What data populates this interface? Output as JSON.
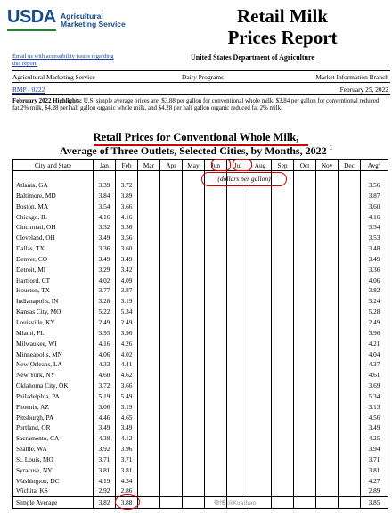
{
  "header": {
    "logo_text": "USDA",
    "logo_subtitle": "Agricultural Marketing Service",
    "title_line1": "Retail Milk",
    "title_line2": "Prices Report",
    "accessibility_link": "Email us with accessibility issues regarding this report.",
    "department": "United States Department of Agriculture"
  },
  "meta": {
    "agency": "Agricultural Marketing Service",
    "program": "Dairy Programs",
    "branch": "Market Information Branch",
    "report_code": "RMP - 0222",
    "date": "February 25, 2022"
  },
  "highlights": {
    "label": "February 2022 Highlights:",
    "text": "U.S. simple average prices are: $3.88 per gallon for conventional whole milk, $3.84 per gallon for conventional reduced fat 2% milk, $4.28 per half gallon organic whole milk, and $4.28 per half gallon organic reduced fat 2% milk."
  },
  "table": {
    "title_line1": "Retail Prices for Conventional Whole Milk,",
    "title_line2": "Average of Three Outlets, Selected Cities, by Months, 2022",
    "title_footnote": "1",
    "units": "(dollars per gallon)",
    "col_city": "City and State",
    "months": [
      "Jan",
      "Feb",
      "Mar",
      "Apr",
      "May",
      "Jun",
      "Jul",
      "Aug",
      "Sep",
      "Oct",
      "Nov",
      "Dec"
    ],
    "col_avg": "Avg",
    "col_avg_sup": "2",
    "rows": [
      {
        "city": "Atlanta, GA",
        "jan": "3.39",
        "feb": "3.72",
        "avg": "3.56"
      },
      {
        "city": "Baltimore, MD",
        "jan": "3.84",
        "feb": "3.89",
        "avg": "3.87"
      },
      {
        "city": "Boston, MA",
        "jan": "3.54",
        "feb": "3.66",
        "avg": "3.60"
      },
      {
        "city": "Chicago, IL",
        "jan": "4.16",
        "feb": "4.16",
        "avg": "4.16"
      },
      {
        "city": "Cincinnati, OH",
        "jan": "3.32",
        "feb": "3.36",
        "avg": "3.34"
      },
      {
        "city": "Cleveland, OH",
        "jan": "3.49",
        "feb": "3.56",
        "avg": "3.53"
      },
      {
        "city": "Dallas, TX",
        "jan": "3.36",
        "feb": "3.60",
        "avg": "3.48"
      },
      {
        "city": "Denver, CO",
        "jan": "3.49",
        "feb": "3.49",
        "avg": "3.49"
      },
      {
        "city": "Detroit, MI",
        "jan": "3.29",
        "feb": "3.42",
        "avg": "3.36"
      },
      {
        "city": "Hartford, CT",
        "jan": "4.02",
        "feb": "4.09",
        "avg": "4.06"
      },
      {
        "city": "Houston, TX",
        "jan": "3.77",
        "feb": "3.87",
        "avg": "3.82"
      },
      {
        "city": "Indianapolis, IN",
        "jan": "3.28",
        "feb": "3.19",
        "avg": "3.24"
      },
      {
        "city": "Kansas City, MO",
        "jan": "5.22",
        "feb": "5.34",
        "avg": "5.28"
      },
      {
        "city": "Louisville, KY",
        "jan": "2.49",
        "feb": "2.49",
        "avg": "2.49"
      },
      {
        "city": "Miami, FL",
        "jan": "3.95",
        "feb": "3.96",
        "avg": "3.96"
      },
      {
        "city": "Milwaukee, WI",
        "jan": "4.16",
        "feb": "4.26",
        "avg": "4.21"
      },
      {
        "city": "Minneapolis, MN",
        "jan": "4.06",
        "feb": "4.02",
        "avg": "4.04"
      },
      {
        "city": "New Orleans, LA",
        "jan": "4.33",
        "feb": "4.41",
        "avg": "4.37"
      },
      {
        "city": "New York, NY",
        "jan": "4.60",
        "feb": "4.62",
        "avg": "4.61"
      },
      {
        "city": "Oklahoma City, OK",
        "jan": "3.72",
        "feb": "3.66",
        "avg": "3.69"
      },
      {
        "city": "Philadelphia, PA",
        "jan": "5.19",
        "feb": "5.49",
        "avg": "5.34"
      },
      {
        "city": "Phoenix, AZ",
        "jan": "3.06",
        "feb": "3.19",
        "avg": "3.13"
      },
      {
        "city": "Pittsburgh, PA",
        "jan": "4.46",
        "feb": "4.65",
        "avg": "4.56"
      },
      {
        "city": "Portland, OR",
        "jan": "3.49",
        "feb": "3.49",
        "avg": "3.49"
      },
      {
        "city": "Sacramento, CA",
        "jan": "4.38",
        "feb": "4.12",
        "avg": "4.25"
      },
      {
        "city": "Seattle, WA",
        "jan": "3.92",
        "feb": "3.96",
        "avg": "3.94"
      },
      {
        "city": "St. Louis, MO",
        "jan": "3.71",
        "feb": "3.71",
        "avg": "3.71"
      },
      {
        "city": "Syracuse, NY",
        "jan": "3.81",
        "feb": "3.81",
        "avg": "3.81"
      },
      {
        "city": "Washington, DC",
        "jan": "4.19",
        "feb": "4.34",
        "avg": "4.27"
      },
      {
        "city": "Wichita, KS",
        "jan": "2.92",
        "feb": "2.86",
        "avg": "2.89"
      }
    ],
    "summary": {
      "city": "Simple Average",
      "jan": "3.82",
      "feb": "3.88",
      "avg": "3.85"
    }
  },
  "watermark": "微博 @Kuaibao",
  "colors": {
    "usda_blue": "#1a4c8c",
    "annotation_red": "#d00000",
    "link_blue": "#1a3ea8"
  }
}
